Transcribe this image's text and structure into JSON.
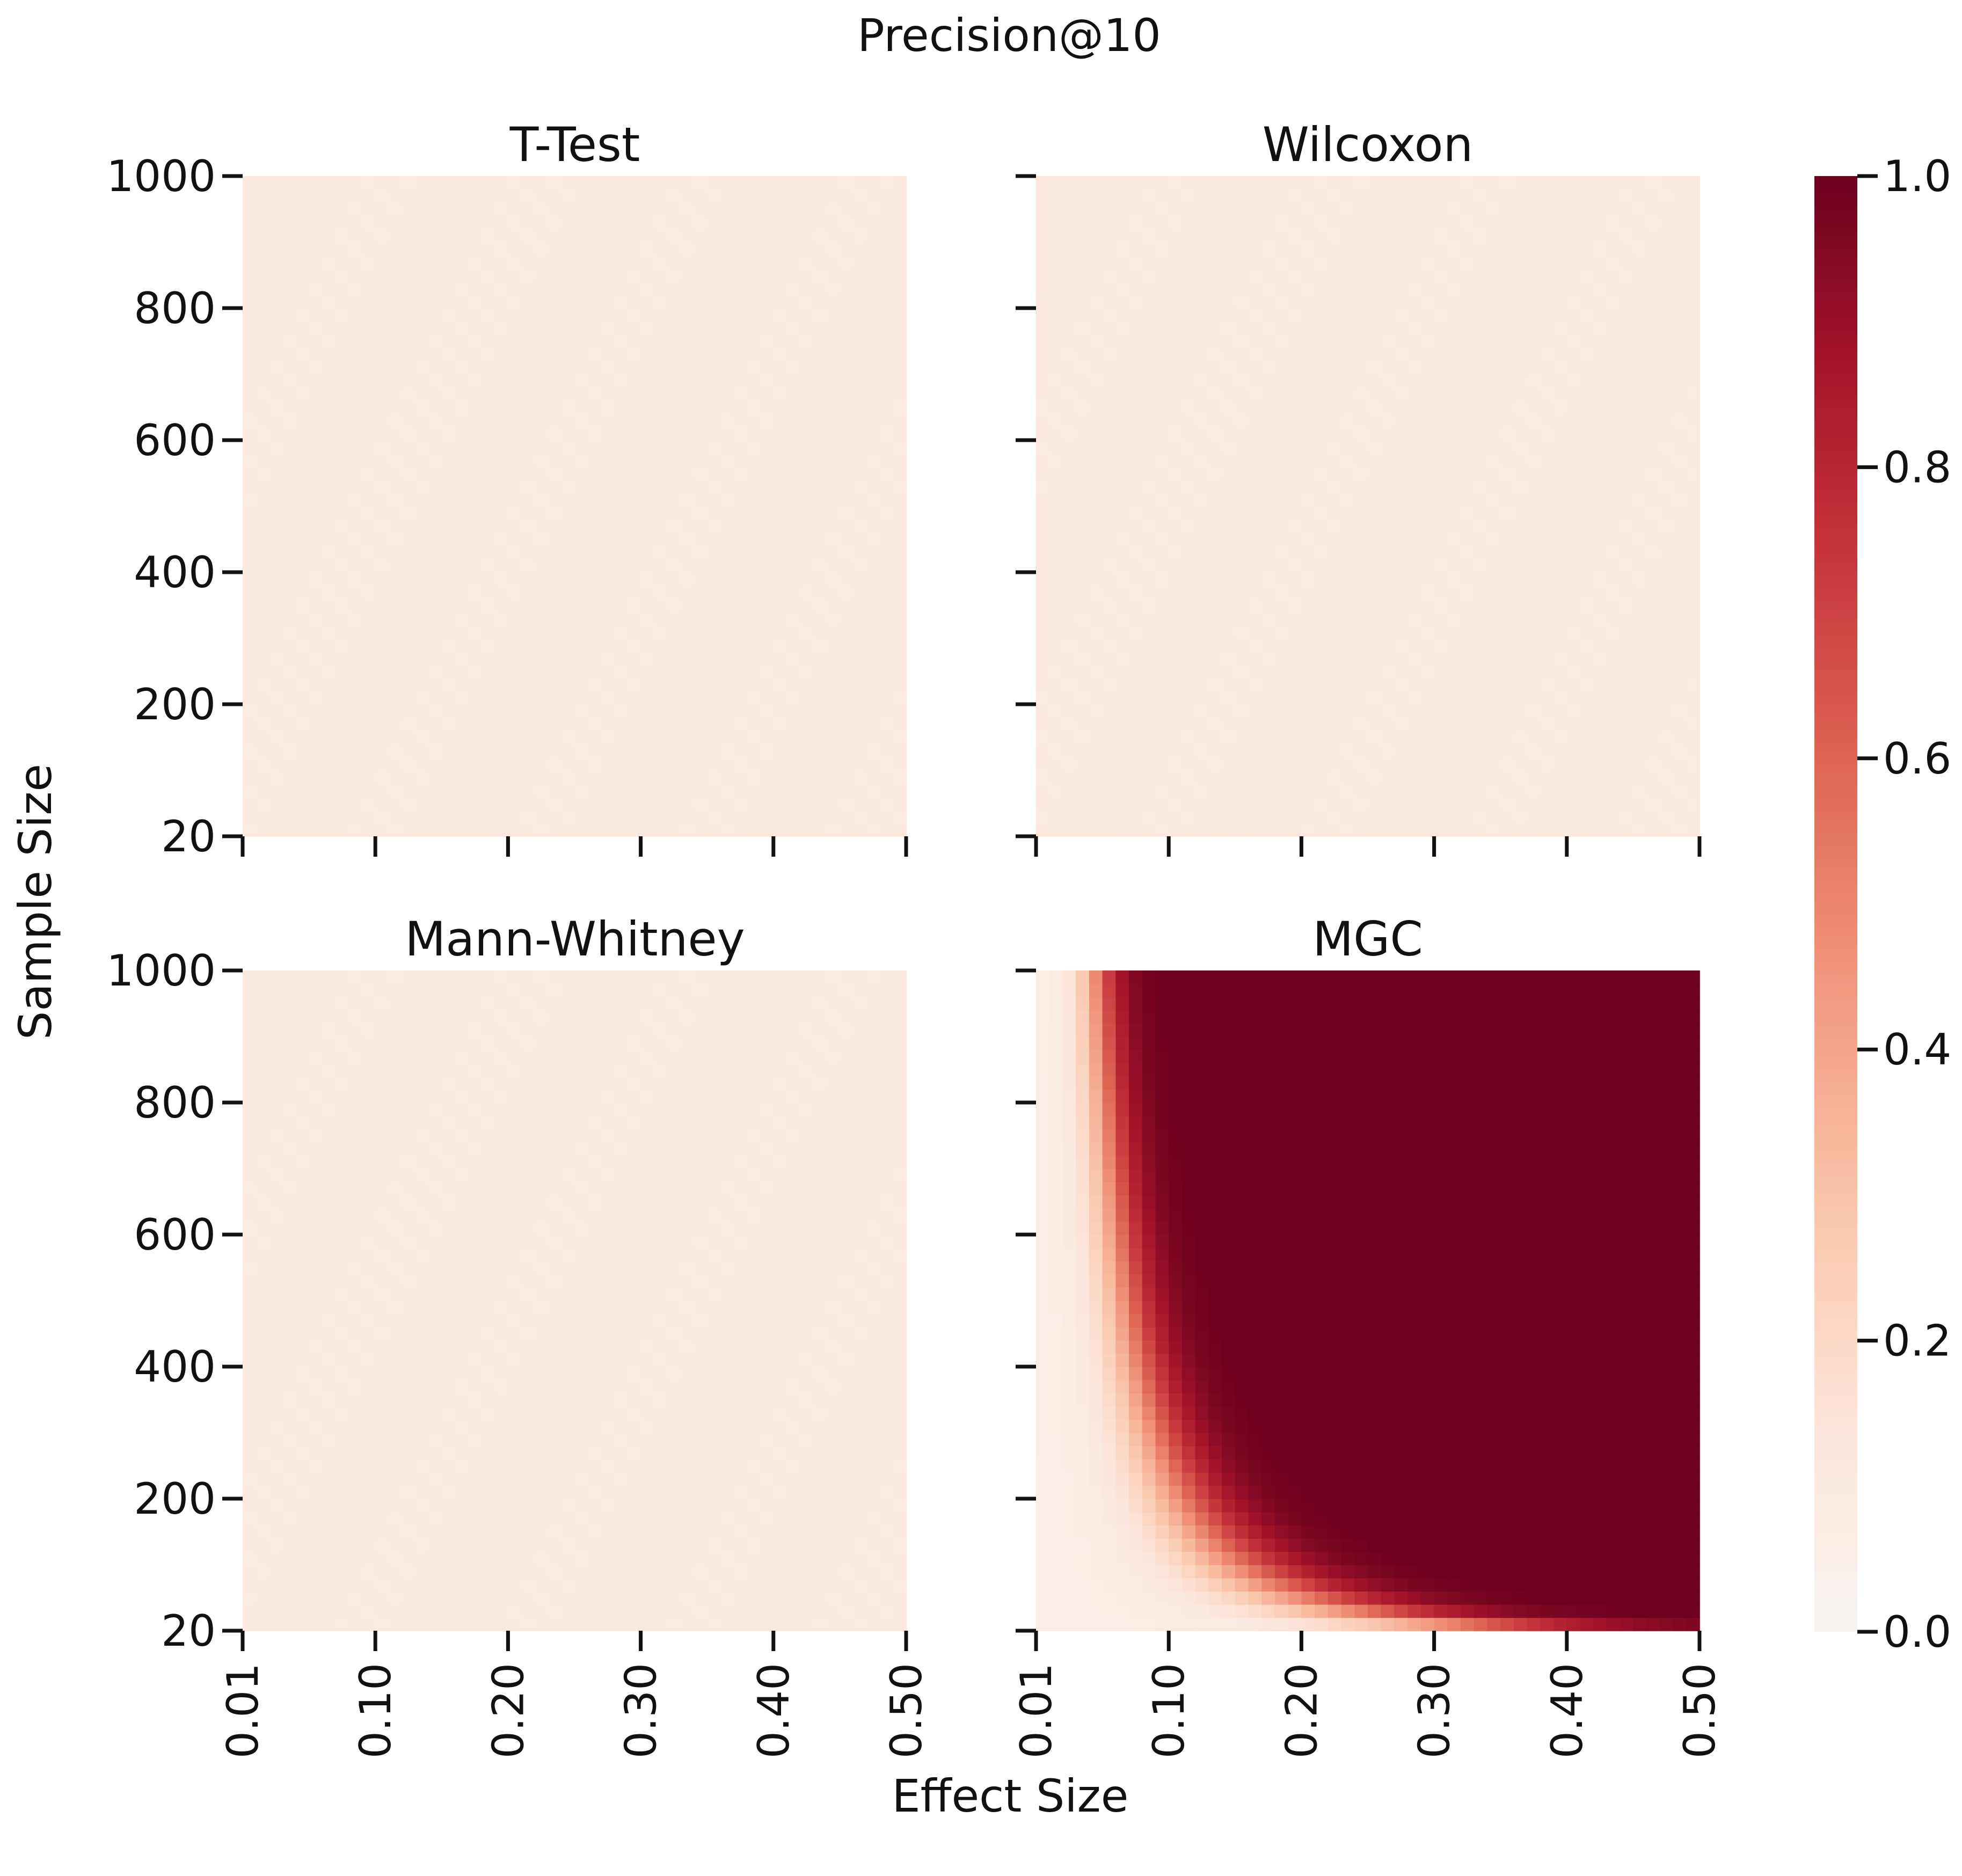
{
  "chart_data": {
    "type": "heatmap",
    "title": "Precision@10",
    "xlabel": "Effect Size",
    "ylabel": "Sample Size",
    "x_tick_labels": [
      "0.01",
      "0.10",
      "0.20",
      "0.30",
      "0.40",
      "0.50"
    ],
    "y_tick_labels": [
      "1000",
      "800",
      "600",
      "400",
      "200",
      "20"
    ],
    "x_range": [
      0.01,
      0.5
    ],
    "y_range": [
      20,
      1000
    ],
    "grid_size": 50,
    "colormap": "Reds",
    "color_range": [
      0.0,
      1.0
    ],
    "colorbar_ticks": [
      "1.0",
      "0.8",
      "0.6",
      "0.4",
      "0.2",
      "0.0"
    ],
    "colorbar_stops": [
      {
        "v": 0.0,
        "color": "#f7f4f2"
      },
      {
        "v": 0.15,
        "color": "#fde3d6"
      },
      {
        "v": 0.3,
        "color": "#f9c3a8"
      },
      {
        "v": 0.45,
        "color": "#f1967c"
      },
      {
        "v": 0.6,
        "color": "#de6452"
      },
      {
        "v": 0.75,
        "color": "#c3333b"
      },
      {
        "v": 0.88,
        "color": "#a11328"
      },
      {
        "v": 1.0,
        "color": "#6c0120"
      }
    ],
    "panels": [
      {
        "name": "T-Test",
        "pattern": "uniform",
        "value": 0.1
      },
      {
        "name": "Wilcoxon",
        "pattern": "uniform",
        "value": 0.1
      },
      {
        "name": "Mann-Whitney",
        "pattern": "uniform",
        "value": 0.1
      },
      {
        "name": "MGC",
        "pattern": "power_curve",
        "min_value": 0.05,
        "max_value": 1.0
      }
    ]
  }
}
